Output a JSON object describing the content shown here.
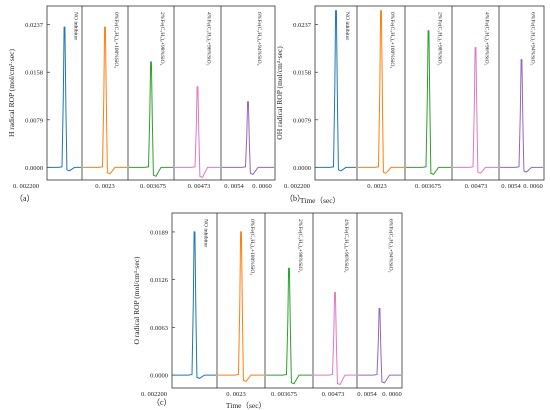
{
  "chart_data": [
    {
      "type": "line",
      "panel_label": "（a）",
      "ylabel": "H radical ROP (mol/cm³·sec)",
      "xlabel": "Time（sec）",
      "yticks": [
        "0.0237",
        "0.0158",
        "0.0079",
        "0.0000"
      ],
      "ylim": [
        -0.0021,
        0.0268
      ],
      "xticks": [
        "0. 002200",
        "0. 0023",
        "0. 003675",
        "0. 00473",
        "0. 0054",
        "0. 0060"
      ],
      "series": [
        {
          "name": "NO inhibitor",
          "color": "#1f77b4",
          "peak": 0.0233,
          "dip": -0.0004
        },
        {
          "name": "0%Fe(C₅H₅)₂+100%SiO₂",
          "color": "#ff7f0e",
          "peak": 0.0233,
          "dip": -0.0009
        },
        {
          "name": "2%Fe(C₅H₅)₂+98%SiO₂",
          "color": "#2ca02c",
          "peak": 0.0175,
          "dip": -0.0013
        },
        {
          "name": "4%Fe(C₅H₅)₂+96%SiO₂",
          "color": "#e377c2",
          "peak": 0.0134,
          "dip": -0.0015
        },
        {
          "name": "6%Fe(C₅H₅)₂+94%SiO₂",
          "color": "#9467bd",
          "peak": 0.0109,
          "dip": -0.001
        }
      ]
    },
    {
      "type": "line",
      "panel_label": "（b）",
      "ylabel": "OH radical ROP (mol/cm³·sec)",
      "xlabel": "Time（sec）",
      "yticks": [
        "0.0237",
        "0.0158",
        "0.0079",
        "0.0000"
      ],
      "ylim": [
        -0.0021,
        0.0268
      ],
      "xticks": [
        "0. 002200",
        "0. 0023",
        "0. 003675",
        "0. 00473",
        "0. 0054",
        "0. 0060"
      ],
      "series": [
        {
          "name": "NO inhibitor",
          "color": "#1f77b4",
          "peak": 0.026,
          "dip": -0.0004
        },
        {
          "name": "0%Fe(C₅H₅)₂+100%SiO₂",
          "color": "#ff7f0e",
          "peak": 0.026,
          "dip": -0.0008
        },
        {
          "name": "2%Fe(C₅H₅)₂+98%SiO₂",
          "color": "#2ca02c",
          "peak": 0.0227,
          "dip": -0.001
        },
        {
          "name": "4%Fe(C₅H₅)₂+96%SiO₂",
          "color": "#e377c2",
          "peak": 0.0199,
          "dip": -0.0008
        },
        {
          "name": "6%Fe(C₅H₅)₂+94%SiO₂",
          "color": "#9467bd",
          "peak": 0.0179,
          "dip": -0.0006
        }
      ]
    },
    {
      "type": "line",
      "panel_label": "（c）",
      "ylabel": "O radical ROP (mol/cm³·sec)",
      "xlabel": "Time（sec）",
      "yticks": [
        "0.0189",
        "0.0126",
        "0.0063",
        "0.0000"
      ],
      "ylim": [
        -0.0017,
        0.0214
      ],
      "xticks": [
        "0. 002200",
        "0. 0023",
        "0. 003675",
        "0. 00473",
        "0. 0054",
        "0. 0060"
      ],
      "series": [
        {
          "name": "NO inhibitor",
          "color": "#1f77b4",
          "peak": 0.0189,
          "dip": -0.0003
        },
        {
          "name": "0%Fe(C₅H₅)₂+100%SiO₂",
          "color": "#ff7f0e",
          "peak": 0.0189,
          "dip": -0.0007
        },
        {
          "name": "2%Fe(C₅H₅)₂+98%SiO₂",
          "color": "#2ca02c",
          "peak": 0.0141,
          "dip": -0.001
        },
        {
          "name": "4%Fe(C₅H₅)₂+96%SiO₂",
          "color": "#e377c2",
          "peak": 0.0109,
          "dip": -0.0011
        },
        {
          "name": "6%Fe(C₅H₅)₂+94%SiO₂",
          "color": "#9467bd",
          "peak": 0.0088,
          "dip": -0.0009
        }
      ]
    }
  ]
}
